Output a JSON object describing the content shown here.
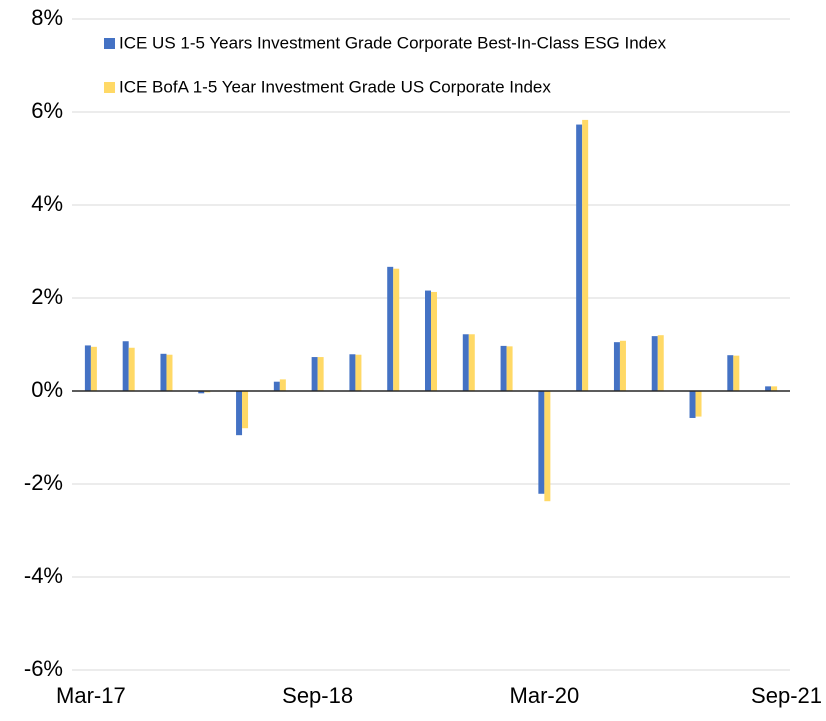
{
  "chart_data": {
    "type": "bar",
    "categories": [
      "Mar-17",
      null,
      null,
      null,
      null,
      null,
      "Sep-18",
      null,
      null,
      null,
      null,
      null,
      "Mar-20",
      null,
      null,
      null,
      null,
      null,
      "Sep-21"
    ],
    "series": [
      {
        "name": "ICE US 1-5 Years Investment Grade Corporate Best-In-Class ESG Index",
        "color": "#4472c4",
        "values": [
          0.98,
          1.07,
          0.8,
          -0.05,
          -0.95,
          0.2,
          0.73,
          0.79,
          2.67,
          2.16,
          1.22,
          0.97,
          -2.21,
          5.73,
          1.05,
          1.18,
          -0.58,
          0.77,
          0.1
        ]
      },
      {
        "name": "ICE BofA 1-5 Year Investment Grade US Corporate Index",
        "color": "#ffd966",
        "values": [
          0.95,
          0.93,
          0.78,
          -0.03,
          -0.8,
          0.25,
          0.73,
          0.78,
          2.63,
          2.13,
          1.22,
          0.96,
          -2.37,
          5.83,
          1.08,
          1.2,
          -0.55,
          0.76,
          0.1
        ]
      }
    ],
    "ylim": [
      -6,
      8
    ],
    "yticks": [
      {
        "value": -6,
        "label": "-6%"
      },
      {
        "value": -4,
        "label": "-4%"
      },
      {
        "value": -2,
        "label": "-2%"
      },
      {
        "value": 0,
        "label": "0%"
      },
      {
        "value": 2,
        "label": "2%"
      },
      {
        "value": 4,
        "label": "4%"
      },
      {
        "value": 6,
        "label": "6%"
      },
      {
        "value": 8,
        "label": "8%"
      }
    ],
    "grid": true
  }
}
